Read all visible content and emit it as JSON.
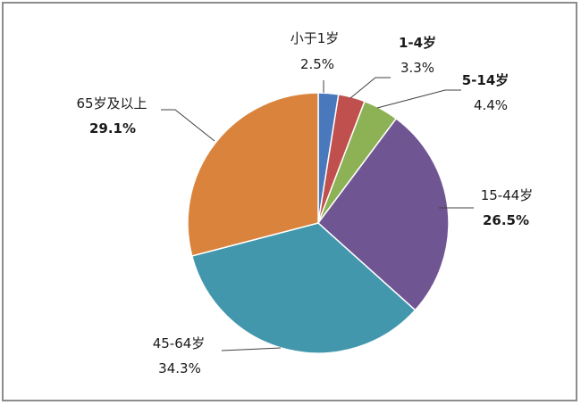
{
  "chart_data": {
    "type": "pie",
    "title": "",
    "legend": "none",
    "slices": [
      {
        "name": "小于1岁",
        "value": 2.5,
        "label": "2.5%",
        "color": "#4a78bd"
      },
      {
        "name": "1-4岁",
        "value": 3.3,
        "label": "3.3%",
        "color": "#c0504d"
      },
      {
        "name": "5-14岁",
        "value": 4.4,
        "label": "4.4%",
        "color": "#8db255"
      },
      {
        "name": "15-44岁",
        "value": 26.5,
        "label": "26.5%",
        "color": "#705593"
      },
      {
        "name": "45-64岁",
        "value": 34.3,
        "label": "34.3%",
        "color": "#4297ad"
      },
      {
        "name": "65岁及以上",
        "value": 29.1,
        "label": "29.1%",
        "color": "#d9833c"
      }
    ]
  }
}
